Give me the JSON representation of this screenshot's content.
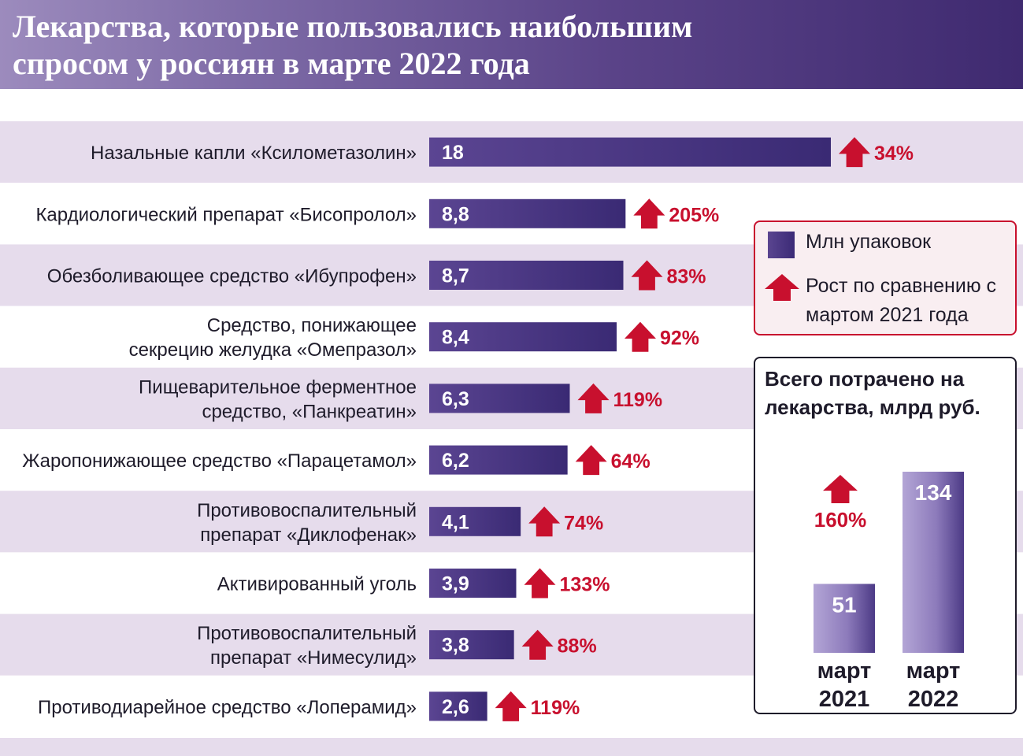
{
  "header": {
    "title": "Лекарства, которые пользовались наибольшим\nспросом у россиян в марте 2022 года"
  },
  "chart_data": [
    {
      "type": "bar",
      "orientation": "horizontal",
      "categories": [
        [
          "Назальные капли «Ксилометазолин»"
        ],
        [
          "Кардиологический препарат «Бисопролол»"
        ],
        [
          "Обезболивающее средство «Ибупрофен»"
        ],
        [
          "Средство, понижающее",
          "секрецию желудка «Омепразол»"
        ],
        [
          "Пищеварительное ферментное",
          "средство, «Панкреатин»"
        ],
        [
          "Жаропонижающее средство «Парацетамол»"
        ],
        [
          "Противовоспалительный",
          "препарат «Диклофенак»"
        ],
        [
          "Активированный уголь"
        ],
        [
          "Противовоспалительный",
          "препарат «Нимесулид»"
        ],
        [
          "Противодиарейное средство «Лоперамид»"
        ]
      ],
      "series": [
        {
          "name": "Млн упаковок",
          "values": [
            18,
            8.8,
            8.7,
            8.4,
            6.3,
            6.2,
            4.1,
            3.9,
            3.8,
            2.6
          ],
          "labels": [
            "18",
            "8,8",
            "8,7",
            "8,4",
            "6,3",
            "6,2",
            "4,1",
            "3,9",
            "3,8",
            "2,6"
          ],
          "color": "#3f2d78"
        },
        {
          "name": "Рост по сравнению с мартом 2021 года",
          "values": [
            34,
            205,
            83,
            92,
            119,
            64,
            74,
            133,
            88,
            119
          ],
          "labels": [
            "34%",
            "205%",
            "83%",
            "92%",
            "119%",
            "64%",
            "74%",
            "133%",
            "88%",
            "119%"
          ],
          "color": "#c8102e"
        }
      ],
      "row_colors": [
        "#e6dcec",
        "#ffffff"
      ]
    },
    {
      "type": "bar",
      "title": "Всего потрачено на лекарства, млрд руб.",
      "categories": [
        [
          "март",
          "2021"
        ],
        [
          "март",
          "2022"
        ]
      ],
      "values": [
        51,
        134
      ],
      "labels": [
        "51",
        "134"
      ],
      "growth": "160%",
      "color": "#8a78b8"
    }
  ],
  "legend": {
    "packages": "Млн упаковок",
    "growth": "Рост по сравнению с мартом 2021 года"
  }
}
